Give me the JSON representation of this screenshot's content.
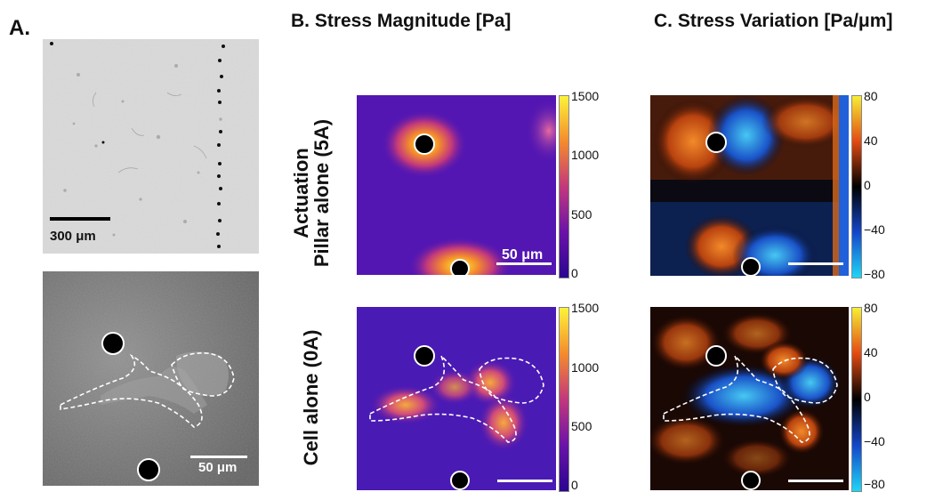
{
  "panels": {
    "a": {
      "label": "A."
    },
    "b": {
      "title": "B. Stress Magnitude [Pa]"
    },
    "c": {
      "title": "C. Stress Variation [Pa/μm]"
    }
  },
  "rows": {
    "top": {
      "label_line1": "Actuation",
      "label_line2": "Pillar alone (5A)"
    },
    "bottom": {
      "label": "Cell alone (0A)"
    }
  },
  "scale_bars": {
    "a_top": "300 μm",
    "a_bottom": "50 μm",
    "b_top": "50 μm"
  },
  "colorbars": {
    "magnitude": {
      "ticks": [
        "1500",
        "1000",
        "500",
        "0"
      ],
      "colors": [
        "#fcf33a",
        "#f48b2d",
        "#c2387c",
        "#6a13a8",
        "#2a0590"
      ]
    },
    "variation": {
      "ticks": [
        "80",
        "40",
        "0",
        "−40",
        "−80"
      ],
      "colors": [
        "#f7ee35",
        "#e24a12",
        "#000000",
        "#1446c8",
        "#1dd6f7"
      ]
    }
  }
}
